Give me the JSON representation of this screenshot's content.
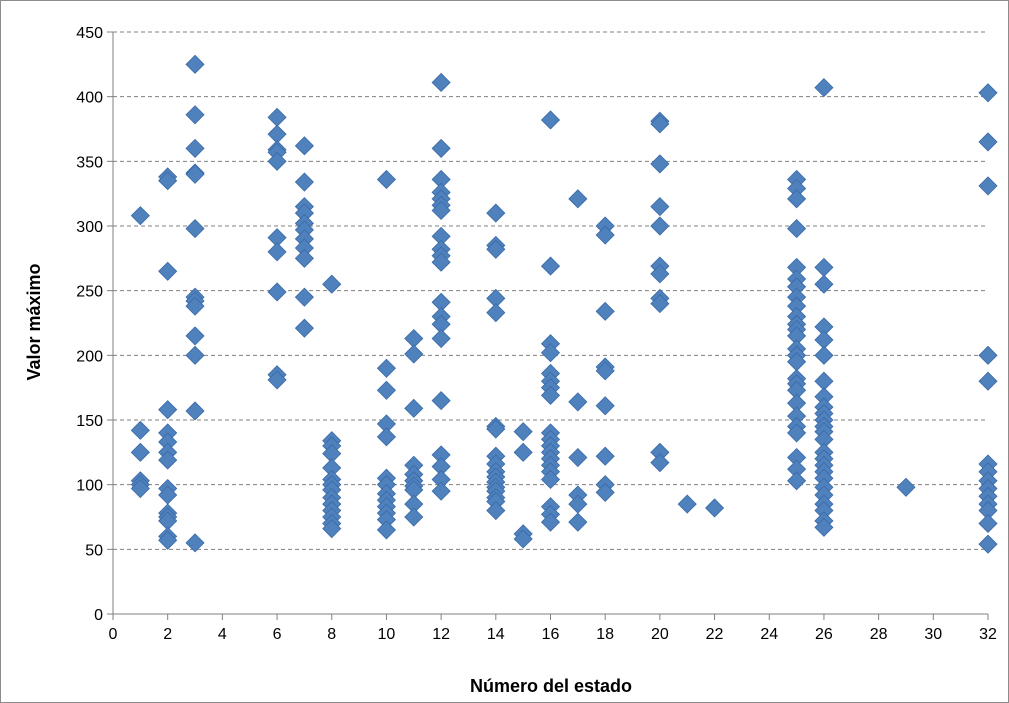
{
  "chart_data": {
    "type": "scatter",
    "title": "",
    "xlabel": "Número del estado",
    "ylabel": "Valor máximo",
    "xlim": [
      0,
      32
    ],
    "ylim": [
      0,
      450
    ],
    "x_ticks": [
      0,
      2,
      4,
      6,
      8,
      10,
      12,
      14,
      16,
      18,
      20,
      22,
      24,
      26,
      28,
      30,
      32
    ],
    "y_ticks": [
      0,
      50,
      100,
      150,
      200,
      250,
      300,
      350,
      400,
      450
    ],
    "grid": "horizontal dashed",
    "legend": "none",
    "marker": "diamond",
    "colors": {
      "marker": "#4f81bd",
      "marker_edge": "#3a6aa8",
      "grid": "#808080",
      "frame": "#808080"
    },
    "series": [
      {
        "points": [
          [
            1,
            308
          ],
          [
            1,
            142
          ],
          [
            1,
            125
          ],
          [
            1,
            103
          ],
          [
            1,
            100
          ],
          [
            1,
            97
          ],
          [
            2,
            338
          ],
          [
            2,
            335
          ],
          [
            2,
            265
          ],
          [
            2,
            158
          ],
          [
            2,
            140
          ],
          [
            2,
            133
          ],
          [
            2,
            125
          ],
          [
            2,
            119
          ],
          [
            2,
            97
          ],
          [
            2,
            92
          ],
          [
            2,
            78
          ],
          [
            2,
            75
          ],
          [
            2,
            72
          ],
          [
            2,
            60
          ],
          [
            2,
            57
          ],
          [
            3,
            425
          ],
          [
            3,
            386
          ],
          [
            3,
            360
          ],
          [
            3,
            341
          ],
          [
            3,
            340
          ],
          [
            3,
            298
          ],
          [
            3,
            245
          ],
          [
            3,
            242
          ],
          [
            3,
            238
          ],
          [
            3,
            215
          ],
          [
            3,
            200
          ],
          [
            3,
            157
          ],
          [
            3,
            55
          ],
          [
            6,
            384
          ],
          [
            6,
            371
          ],
          [
            6,
            359
          ],
          [
            6,
            357
          ],
          [
            6,
            350
          ],
          [
            6,
            291
          ],
          [
            6,
            280
          ],
          [
            6,
            249
          ],
          [
            6,
            185
          ],
          [
            6,
            181
          ],
          [
            7,
            362
          ],
          [
            7,
            334
          ],
          [
            7,
            315
          ],
          [
            7,
            310
          ],
          [
            7,
            302
          ],
          [
            7,
            297
          ],
          [
            7,
            290
          ],
          [
            7,
            283
          ],
          [
            7,
            275
          ],
          [
            7,
            245
          ],
          [
            7,
            221
          ],
          [
            8,
            255
          ],
          [
            8,
            134
          ],
          [
            8,
            130
          ],
          [
            8,
            124
          ],
          [
            8,
            113
          ],
          [
            8,
            104
          ],
          [
            8,
            100
          ],
          [
            8,
            96
          ],
          [
            8,
            90
          ],
          [
            8,
            85
          ],
          [
            8,
            80
          ],
          [
            8,
            75
          ],
          [
            8,
            70
          ],
          [
            8,
            66
          ],
          [
            10,
            336
          ],
          [
            10,
            190
          ],
          [
            10,
            173
          ],
          [
            10,
            147
          ],
          [
            10,
            137
          ],
          [
            10,
            105
          ],
          [
            10,
            100
          ],
          [
            10,
            93
          ],
          [
            10,
            88
          ],
          [
            10,
            83
          ],
          [
            10,
            78
          ],
          [
            10,
            73
          ],
          [
            10,
            65
          ],
          [
            11,
            213
          ],
          [
            11,
            201
          ],
          [
            11,
            159
          ],
          [
            11,
            115
          ],
          [
            11,
            108
          ],
          [
            11,
            103
          ],
          [
            11,
            99
          ],
          [
            11,
            96
          ],
          [
            11,
            85
          ],
          [
            11,
            75
          ],
          [
            12,
            411
          ],
          [
            12,
            360
          ],
          [
            12,
            336
          ],
          [
            12,
            326
          ],
          [
            12,
            321
          ],
          [
            12,
            316
          ],
          [
            12,
            312
          ],
          [
            12,
            292
          ],
          [
            12,
            282
          ],
          [
            12,
            277
          ],
          [
            12,
            272
          ],
          [
            12,
            241
          ],
          [
            12,
            230
          ],
          [
            12,
            224
          ],
          [
            12,
            213
          ],
          [
            12,
            165
          ],
          [
            12,
            123
          ],
          [
            12,
            114
          ],
          [
            12,
            104
          ],
          [
            12,
            95
          ],
          [
            14,
            310
          ],
          [
            14,
            285
          ],
          [
            14,
            282
          ],
          [
            14,
            244
          ],
          [
            14,
            233
          ],
          [
            14,
            145
          ],
          [
            14,
            143
          ],
          [
            14,
            122
          ],
          [
            14,
            116
          ],
          [
            14,
            110
          ],
          [
            14,
            106
          ],
          [
            14,
            102
          ],
          [
            14,
            98
          ],
          [
            14,
            95
          ],
          [
            14,
            90
          ],
          [
            14,
            87
          ],
          [
            14,
            80
          ],
          [
            15,
            141
          ],
          [
            15,
            125
          ],
          [
            15,
            62
          ],
          [
            15,
            58
          ],
          [
            16,
            382
          ],
          [
            16,
            269
          ],
          [
            16,
            209
          ],
          [
            16,
            202
          ],
          [
            16,
            186
          ],
          [
            16,
            180
          ],
          [
            16,
            175
          ],
          [
            16,
            169
          ],
          [
            16,
            140
          ],
          [
            16,
            135
          ],
          [
            16,
            130
          ],
          [
            16,
            125
          ],
          [
            16,
            120
          ],
          [
            16,
            115
          ],
          [
            16,
            110
          ],
          [
            16,
            104
          ],
          [
            16,
            83
          ],
          [
            16,
            77
          ],
          [
            16,
            71
          ],
          [
            17,
            321
          ],
          [
            17,
            164
          ],
          [
            17,
            121
          ],
          [
            17,
            92
          ],
          [
            17,
            85
          ],
          [
            17,
            71
          ],
          [
            18,
            300
          ],
          [
            18,
            293
          ],
          [
            18,
            234
          ],
          [
            18,
            191
          ],
          [
            18,
            188
          ],
          [
            18,
            161
          ],
          [
            18,
            122
          ],
          [
            18,
            100
          ],
          [
            18,
            94
          ],
          [
            20,
            381
          ],
          [
            20,
            379
          ],
          [
            20,
            348
          ],
          [
            20,
            315
          ],
          [
            20,
            300
          ],
          [
            20,
            269
          ],
          [
            20,
            263
          ],
          [
            20,
            244
          ],
          [
            20,
            240
          ],
          [
            20,
            125
          ],
          [
            20,
            117
          ],
          [
            21,
            85
          ],
          [
            22,
            82
          ],
          [
            25,
            336
          ],
          [
            25,
            329
          ],
          [
            25,
            321
          ],
          [
            25,
            298
          ],
          [
            25,
            268
          ],
          [
            25,
            259
          ],
          [
            25,
            253
          ],
          [
            25,
            245
          ],
          [
            25,
            238
          ],
          [
            25,
            230
          ],
          [
            25,
            224
          ],
          [
            25,
            220
          ],
          [
            25,
            215
          ],
          [
            25,
            205
          ],
          [
            25,
            200
          ],
          [
            25,
            195
          ],
          [
            25,
            182
          ],
          [
            25,
            178
          ],
          [
            25,
            173
          ],
          [
            25,
            163
          ],
          [
            25,
            153
          ],
          [
            25,
            145
          ],
          [
            25,
            140
          ],
          [
            25,
            121
          ],
          [
            25,
            112
          ],
          [
            25,
            103
          ],
          [
            26,
            407
          ],
          [
            26,
            268
          ],
          [
            26,
            255
          ],
          [
            26,
            222
          ],
          [
            26,
            212
          ],
          [
            26,
            200
          ],
          [
            26,
            180
          ],
          [
            26,
            168
          ],
          [
            26,
            160
          ],
          [
            26,
            155
          ],
          [
            26,
            150
          ],
          [
            26,
            145
          ],
          [
            26,
            141
          ],
          [
            26,
            135
          ],
          [
            26,
            125
          ],
          [
            26,
            120
          ],
          [
            26,
            115
          ],
          [
            26,
            110
          ],
          [
            26,
            105
          ],
          [
            26,
            98
          ],
          [
            26,
            92
          ],
          [
            26,
            85
          ],
          [
            26,
            80
          ],
          [
            26,
            72
          ],
          [
            26,
            67
          ],
          [
            29,
            98
          ],
          [
            32,
            403
          ],
          [
            32,
            365
          ],
          [
            32,
            331
          ],
          [
            32,
            200
          ],
          [
            32,
            180
          ],
          [
            32,
            116
          ],
          [
            32,
            110
          ],
          [
            32,
            103
          ],
          [
            32,
            97
          ],
          [
            32,
            91
          ],
          [
            32,
            85
          ],
          [
            32,
            80
          ],
          [
            32,
            70
          ],
          [
            32,
            54
          ]
        ]
      }
    ]
  }
}
